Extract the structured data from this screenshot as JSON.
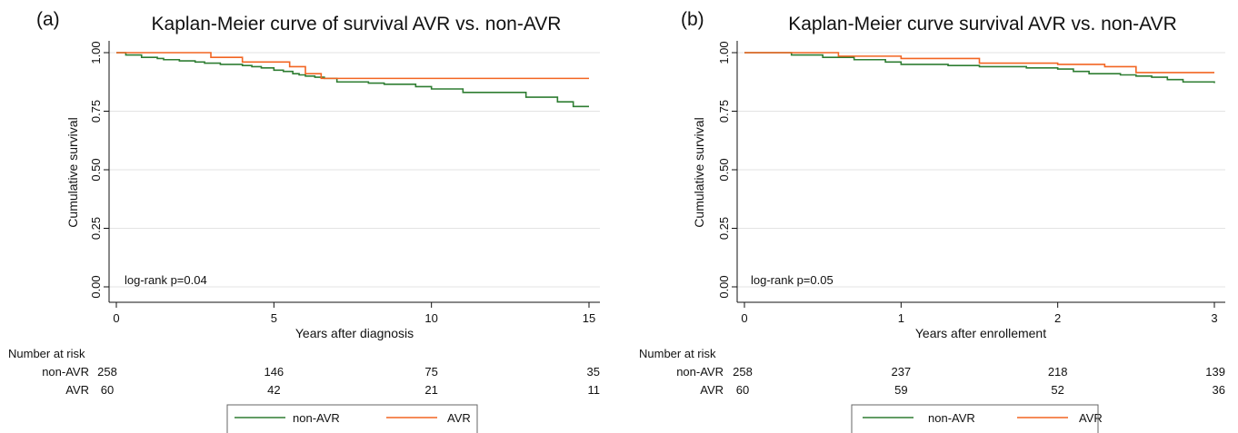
{
  "colors": {
    "non_avr": "#2e7d32",
    "avr": "#f26522",
    "grid": "#e3e3e3",
    "axis": "#111111"
  },
  "chart_data": [
    {
      "type": "line",
      "panel_label": "(a)",
      "title": "Kaplan-Meier curve of survival AVR vs. non-AVR",
      "xlabel": "Years after diagnosis",
      "ylabel": "Cumulative survival",
      "xlim": [
        0,
        15
      ],
      "ylim": [
        0,
        1
      ],
      "xticks": [
        0,
        5,
        10,
        15
      ],
      "yticks": [
        "0.00",
        "0.25",
        "0.50",
        "0.75",
        "1.00"
      ],
      "grid": true,
      "annotation": "log-rank p=0.04",
      "risk_table": {
        "title": "Number at risk",
        "rows": [
          {
            "name": "non-AVR",
            "values": [
              258,
              146,
              75,
              35
            ]
          },
          {
            "name": "AVR",
            "values": [
              60,
              42,
              21,
              11
            ]
          }
        ]
      },
      "legend": {
        "position": "bottom",
        "entries": [
          "non-AVR",
          "AVR"
        ]
      },
      "series": [
        {
          "name": "non-AVR",
          "color": "#2e7d32",
          "x": [
            0,
            0.3,
            0.5,
            0.8,
            1.0,
            1.3,
            1.5,
            2.0,
            2.5,
            2.8,
            3.0,
            3.3,
            3.6,
            4.0,
            4.3,
            4.6,
            5.0,
            5.3,
            5.6,
            5.8,
            6.0,
            6.3,
            6.6,
            7.0,
            8.0,
            8.5,
            9.5,
            10.0,
            11.0,
            13.0,
            14.0,
            14.5,
            15.0
          ],
          "y": [
            1.0,
            0.99,
            0.99,
            0.98,
            0.98,
            0.975,
            0.97,
            0.965,
            0.96,
            0.955,
            0.955,
            0.95,
            0.95,
            0.945,
            0.94,
            0.935,
            0.925,
            0.92,
            0.91,
            0.905,
            0.9,
            0.895,
            0.89,
            0.875,
            0.87,
            0.865,
            0.855,
            0.845,
            0.83,
            0.81,
            0.79,
            0.77,
            0.77
          ]
        },
        {
          "name": "AVR",
          "color": "#f26522",
          "x": [
            0,
            3.0,
            4.0,
            5.5,
            6.0,
            6.5,
            15.0
          ],
          "y": [
            1.0,
            0.98,
            0.96,
            0.94,
            0.91,
            0.89,
            0.89
          ]
        }
      ]
    },
    {
      "type": "line",
      "panel_label": "(b)",
      "title": "Kaplan-Meier curve survival AVR vs. non-AVR",
      "xlabel": "Years after enrollement",
      "ylabel": "Cumulative survival",
      "xlim": [
        0,
        3
      ],
      "ylim": [
        0,
        1
      ],
      "xticks": [
        0,
        1,
        2,
        3
      ],
      "yticks": [
        "0.00",
        "0.25",
        "0.50",
        "0.75",
        "1.00"
      ],
      "grid": true,
      "annotation": "log-rank p=0.05",
      "risk_table": {
        "title": "Number at risk",
        "rows": [
          {
            "name": "non-AVR",
            "values": [
              258,
              237,
              218,
              139
            ]
          },
          {
            "name": "AVR",
            "values": [
              60,
              59,
              52,
              36
            ]
          }
        ]
      },
      "legend": {
        "position": "bottom",
        "entries": [
          "non-AVR",
          "AVR"
        ]
      },
      "series": [
        {
          "name": "non-AVR",
          "color": "#2e7d32",
          "x": [
            0,
            0.3,
            0.5,
            0.7,
            0.9,
            1.0,
            1.3,
            1.5,
            1.8,
            2.0,
            2.1,
            2.2,
            2.4,
            2.5,
            2.6,
            2.7,
            2.8,
            3.0
          ],
          "y": [
            1.0,
            0.99,
            0.98,
            0.97,
            0.96,
            0.95,
            0.945,
            0.94,
            0.935,
            0.93,
            0.92,
            0.91,
            0.905,
            0.9,
            0.895,
            0.885,
            0.875,
            0.87
          ]
        },
        {
          "name": "AVR",
          "color": "#f26522",
          "x": [
            0,
            0.6,
            1.0,
            1.5,
            2.0,
            2.3,
            2.5,
            3.0
          ],
          "y": [
            1.0,
            0.985,
            0.975,
            0.955,
            0.95,
            0.94,
            0.915,
            0.915
          ]
        }
      ]
    }
  ]
}
